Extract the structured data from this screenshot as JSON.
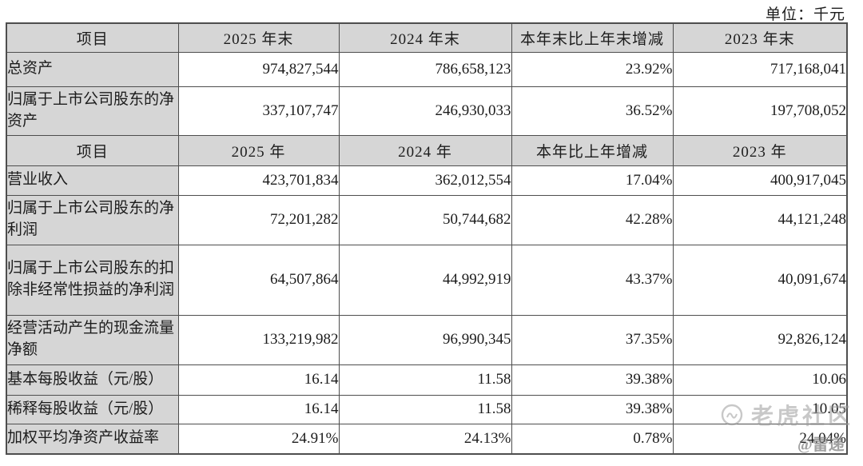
{
  "unit_label": "单位：千元",
  "table": {
    "sections": [
      {
        "header": [
          "项目",
          "2025 年末",
          "2024 年末",
          "本年末比上年末增减",
          "2023 年末"
        ],
        "rows": [
          {
            "label": "总资产",
            "values": [
              "974,827,544",
              "786,658,123",
              "23.92%",
              "717,168,041"
            ]
          },
          {
            "label": "归属于上市公司股东的净资产",
            "values": [
              "337,107,747",
              "246,930,033",
              "36.52%",
              "197,708,052"
            ]
          }
        ]
      },
      {
        "header": [
          "项目",
          "2025 年",
          "2024 年",
          "本年比上年增减",
          "2023 年"
        ],
        "rows": [
          {
            "label": "营业收入",
            "values": [
              "423,701,834",
              "362,012,554",
              "17.04%",
              "400,917,045"
            ]
          },
          {
            "label": "归属于上市公司股东的净利润",
            "values": [
              "72,201,282",
              "50,744,682",
              "42.28%",
              "44,121,248"
            ]
          },
          {
            "label": "归属于上市公司股东的扣除非经常性损益的净利润",
            "values": [
              "64,507,864",
              "44,992,919",
              "43.37%",
              "40,091,674"
            ]
          },
          {
            "label": "经营活动产生的现金流量净额",
            "values": [
              "133,219,982",
              "96,990,345",
              "37.35%",
              "92,826,124"
            ]
          },
          {
            "label": "基本每股收益（元/股）",
            "values": [
              "16.14",
              "11.58",
              "39.38%",
              "10.06"
            ]
          },
          {
            "label": "稀释每股收益（元/股）",
            "values": [
              "16.14",
              "11.58",
              "39.38%",
              "10.05"
            ]
          },
          {
            "label": "加权平均净资产收益率",
            "values": [
              "24.91%",
              "24.13%",
              "0.78%",
              "24.04%"
            ]
          }
        ]
      }
    ]
  },
  "watermark": {
    "icon": "tiger-logo-icon",
    "community": "老虎社区",
    "author": "@雷递"
  },
  "colors": {
    "header_cell_bg": "#d6d6d6",
    "border": "#4e4e4e",
    "text": "#1c1c1c",
    "watermark": "#9b9b9b"
  }
}
